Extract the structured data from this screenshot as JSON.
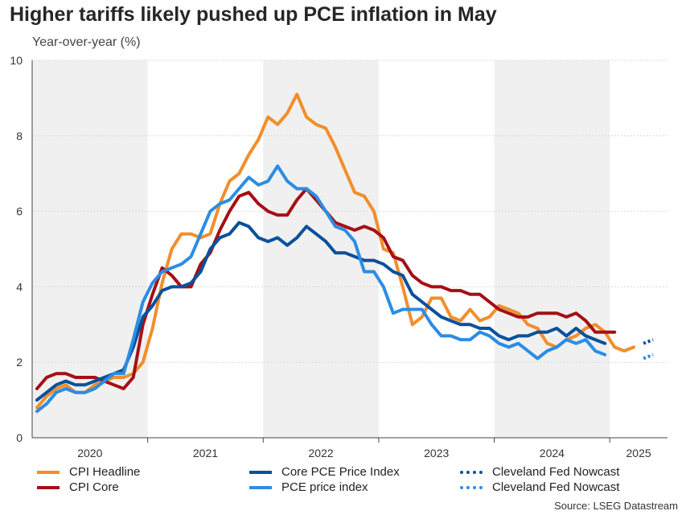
{
  "title": "Higher tariffs likely pushed up PCE inflation in May",
  "subtitle": "Year-over-year (%)",
  "source": "Source: LSEG Datastream",
  "colors": {
    "cpi_headline": "#f28e2b",
    "cpi_core": "#a50f15",
    "core_pce": "#08519c",
    "pce": "#2b8de3",
    "band": "#f0f0f0",
    "grid": "#d9d9d9"
  },
  "legend": [
    {
      "label": "CPI Headline",
      "color": "#f28e2b",
      "dotted": false
    },
    {
      "label": "CPI Core",
      "color": "#a50f15",
      "dotted": false
    },
    {
      "label": "Core PCE Price Index",
      "color": "#08519c",
      "dotted": false
    },
    {
      "label": "PCE price index",
      "color": "#2b8de3",
      "dotted": false
    },
    {
      "label": "Cleveland Fed Nowcast",
      "color": "#08519c",
      "dotted": true
    },
    {
      "label": "Cleveland Fed Nowcast",
      "color": "#2b8de3",
      "dotted": true
    }
  ],
  "chart_data": {
    "type": "line",
    "x_unit": "month",
    "x_start": "2020-01",
    "x_end": "2025-06",
    "x_ticks": [
      "2020",
      "2021",
      "2022",
      "2023",
      "2024",
      "2025"
    ],
    "shaded_years": [
      "2020",
      "2022",
      "2024"
    ],
    "ylim": [
      0,
      10
    ],
    "yticks": [
      0,
      2,
      4,
      6,
      8,
      10
    ],
    "grid": true,
    "series": [
      {
        "name": "CPI Headline",
        "key": "cpi_headline",
        "start": "2020-01",
        "style": "solid",
        "values": [
          0.8,
          1.1,
          1.3,
          1.4,
          1.2,
          1.2,
          1.4,
          1.5,
          1.6,
          1.6,
          1.7,
          2.0,
          2.9,
          4.1,
          5.0,
          5.4,
          5.4,
          5.3,
          5.4,
          6.2,
          6.8,
          7.0,
          7.5,
          7.9,
          8.5,
          8.3,
          8.6,
          9.1,
          8.5,
          8.3,
          8.2,
          7.7,
          7.1,
          6.5,
          6.4,
          6.0,
          5.0,
          4.9,
          4.0,
          3.0,
          3.2,
          3.7,
          3.7,
          3.2,
          3.1,
          3.4,
          3.1,
          3.2,
          3.5,
          3.4,
          3.3,
          3.0,
          2.9,
          2.5,
          2.4,
          2.6,
          2.7,
          2.9,
          3.0,
          2.8,
          2.4,
          2.3,
          2.4
        ]
      },
      {
        "name": "CPI Core",
        "key": "cpi_core",
        "start": "2020-01",
        "style": "solid",
        "values": [
          1.3,
          1.6,
          1.7,
          1.7,
          1.6,
          1.6,
          1.6,
          1.5,
          1.4,
          1.3,
          1.6,
          3.0,
          3.8,
          4.5,
          4.3,
          4.0,
          4.0,
          4.6,
          4.9,
          5.5,
          6.0,
          6.4,
          6.5,
          6.2,
          6.0,
          5.9,
          5.9,
          6.3,
          6.6,
          6.3,
          6.0,
          5.7,
          5.6,
          5.5,
          5.6,
          5.5,
          5.3,
          4.8,
          4.7,
          4.3,
          4.1,
          4.0,
          4.0,
          3.9,
          3.9,
          3.8,
          3.8,
          3.6,
          3.4,
          3.3,
          3.2,
          3.2,
          3.3,
          3.3,
          3.3,
          3.2,
          3.3,
          3.1,
          2.8,
          2.8,
          2.8
        ]
      },
      {
        "name": "Core PCE Price Index",
        "key": "core_pce",
        "start": "2020-01",
        "style": "solid",
        "values": [
          1.0,
          1.2,
          1.4,
          1.5,
          1.4,
          1.4,
          1.5,
          1.6,
          1.7,
          1.8,
          2.4,
          3.2,
          3.5,
          3.9,
          4.0,
          4.0,
          4.1,
          4.4,
          5.0,
          5.3,
          5.4,
          5.7,
          5.6,
          5.3,
          5.2,
          5.3,
          5.1,
          5.3,
          5.6,
          5.4,
          5.2,
          4.9,
          4.9,
          4.8,
          4.7,
          4.7,
          4.6,
          4.4,
          4.3,
          3.8,
          3.6,
          3.4,
          3.2,
          3.1,
          3.0,
          3.0,
          2.9,
          2.9,
          2.7,
          2.6,
          2.7,
          2.7,
          2.8,
          2.8,
          2.9,
          2.7,
          2.9,
          2.7,
          2.6,
          2.5
        ]
      },
      {
        "name": "PCE price index",
        "key": "pce",
        "start": "2020-01",
        "style": "solid",
        "values": [
          0.7,
          0.9,
          1.2,
          1.3,
          1.2,
          1.2,
          1.3,
          1.5,
          1.7,
          1.7,
          2.6,
          3.6,
          4.1,
          4.4,
          4.5,
          4.6,
          4.8,
          5.4,
          6.0,
          6.2,
          6.3,
          6.6,
          6.9,
          6.7,
          6.8,
          7.2,
          6.8,
          6.6,
          6.6,
          6.4,
          6.0,
          5.6,
          5.5,
          5.2,
          4.4,
          4.4,
          4.0,
          3.3,
          3.4,
          3.4,
          3.4,
          3.0,
          2.7,
          2.7,
          2.6,
          2.6,
          2.8,
          2.7,
          2.5,
          2.4,
          2.5,
          2.3,
          2.1,
          2.3,
          2.4,
          2.6,
          2.5,
          2.6,
          2.3,
          2.2
        ]
      },
      {
        "name": "Cleveland Fed Nowcast",
        "key": "core_pce",
        "start": "2025-04",
        "style": "dotted",
        "values": [
          2.5,
          2.6
        ]
      },
      {
        "name": "Cleveland Fed Nowcast",
        "key": "pce",
        "start": "2025-04",
        "style": "dotted",
        "values": [
          2.1,
          2.2
        ]
      }
    ]
  }
}
